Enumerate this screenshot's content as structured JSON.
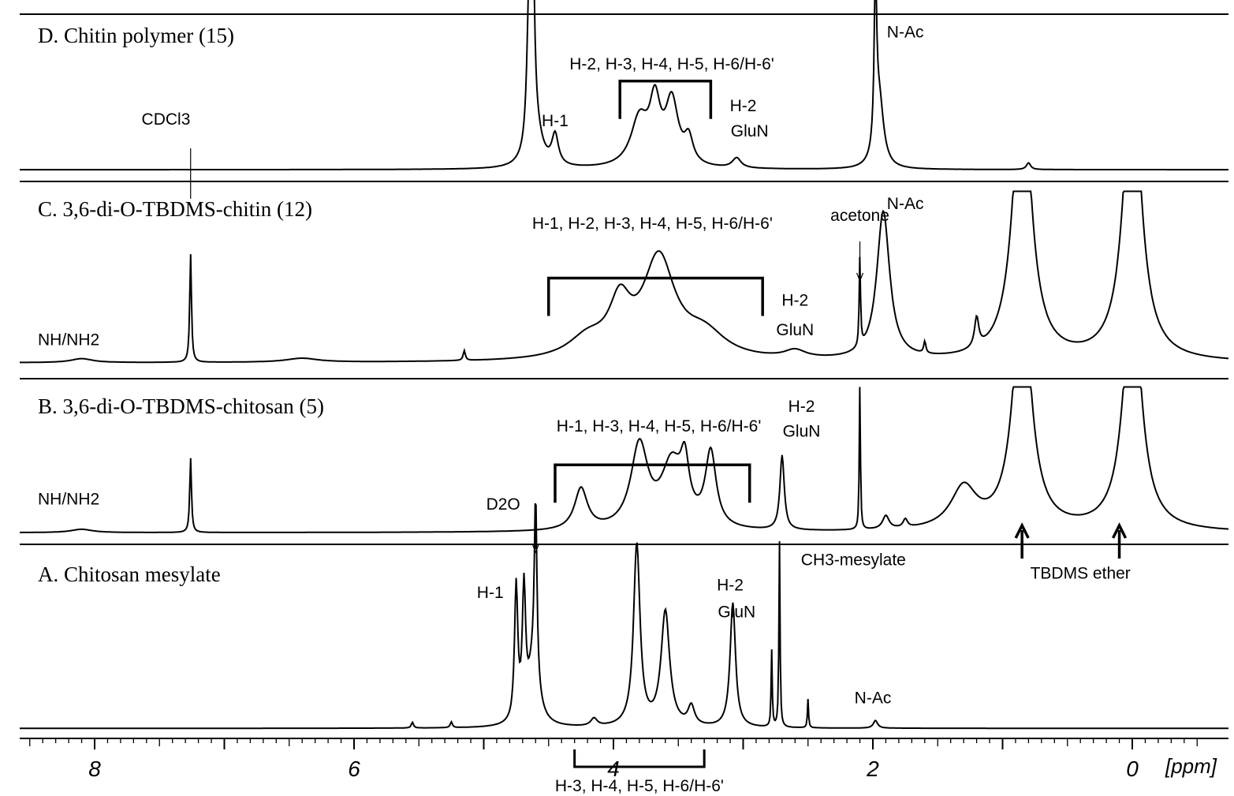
{
  "chart_data": {
    "type": "line",
    "title": "",
    "xlabel": "[ppm]",
    "x_axis_reversed": true,
    "xlim": [
      8.5,
      -0.5
    ],
    "tick_labels": [
      "8",
      "6",
      "4",
      "2",
      "0"
    ],
    "tick_values": [
      8,
      6,
      4,
      2,
      0
    ],
    "grid": false,
    "axis_annotation": {
      "text": "H-3, H-4, H-5, H-6/H-6'",
      "x_from": 4.3,
      "x_to": 3.3
    },
    "panels": [
      {
        "key": "D",
        "title": "D. Chitin polymer (15)",
        "series": {
          "name": "",
          "baseline": 0.93,
          "peaks": [
            {
              "x": 4.62,
              "h": 0.95,
              "w": 0.015
            },
            {
              "x": 4.65,
              "h": 0.9,
              "w": 0.02
            },
            {
              "x": 4.6,
              "h": 0.2,
              "w": 0.06
            },
            {
              "x": 4.45,
              "h": 0.18,
              "w": 0.03
            },
            {
              "x": 3.8,
              "h": 0.28,
              "w": 0.08
            },
            {
              "x": 3.68,
              "h": 0.35,
              "w": 0.05
            },
            {
              "x": 3.55,
              "h": 0.38,
              "w": 0.06
            },
            {
              "x": 3.42,
              "h": 0.15,
              "w": 0.04
            },
            {
              "x": 3.05,
              "h": 0.06,
              "w": 0.04
            },
            {
              "x": 1.98,
              "h": 0.97,
              "w": 0.012
            },
            {
              "x": 1.95,
              "h": 0.4,
              "w": 0.04
            },
            {
              "x": 0.8,
              "h": 0.04,
              "w": 0.02
            }
          ]
        },
        "labels": [
          {
            "text": "N-Ac",
            "x": 1.75,
            "y": 0.14
          },
          {
            "text": "H-2, H-3, H-4, H-5, H-6/H-6'",
            "x": 3.55,
            "y": 0.33
          },
          {
            "text": "H-1",
            "x": 4.45,
            "y": 0.67
          },
          {
            "text": "H-2",
            "x": 3.0,
            "y": 0.58
          },
          {
            "text": "GluN",
            "x": 2.95,
            "y": 0.73
          },
          {
            "text": "CDCl3",
            "x": 7.45,
            "y": 0.66
          }
        ],
        "bracket": {
          "x_from": 3.95,
          "x_to": 3.25
        }
      },
      {
        "key": "C",
        "title": "C.  3,6-di-O-TBDMS-chitin (12)",
        "series": {
          "name": "",
          "baseline": 0.92,
          "clip": 0.05,
          "peaks": [
            {
              "x": 8.1,
              "h": 0.02,
              "w": 0.1
            },
            {
              "x": 7.26,
              "h": 0.55,
              "w": 0.008
            },
            {
              "x": 6.4,
              "h": 0.02,
              "w": 0.15
            },
            {
              "x": 5.15,
              "h": 0.05,
              "w": 0.01
            },
            {
              "x": 4.2,
              "h": 0.1,
              "w": 0.18
            },
            {
              "x": 3.95,
              "h": 0.25,
              "w": 0.1
            },
            {
              "x": 3.65,
              "h": 0.5,
              "w": 0.15
            },
            {
              "x": 3.3,
              "h": 0.12,
              "w": 0.2
            },
            {
              "x": 2.6,
              "h": 0.04,
              "w": 0.1
            },
            {
              "x": 2.1,
              "h": 0.45,
              "w": 0.006
            },
            {
              "x": 1.92,
              "h": 0.75,
              "w": 0.06
            },
            {
              "x": 1.6,
              "h": 0.06,
              "w": 0.01
            },
            {
              "x": 1.2,
              "h": 0.15,
              "w": 0.02
            },
            {
              "x": 0.85,
              "h": 1.5,
              "w": 0.08
            },
            {
              "x": 0.0,
              "h": 1.5,
              "w": 0.08
            }
          ]
        },
        "labels": [
          {
            "text": "acetone",
            "x": 2.1,
            "y": 0.2
          },
          {
            "text": "N-Ac",
            "x": 1.75,
            "y": 0.14
          },
          {
            "text": "H-1, H-2, H-3, H-4, H-5, H-6/H-6'",
            "x": 3.7,
            "y": 0.24
          },
          {
            "text": "H-2",
            "x": 2.6,
            "y": 0.63
          },
          {
            "text": "GluN",
            "x": 2.6,
            "y": 0.78
          },
          {
            "text": "NH/NH2",
            "x": 8.2,
            "y": 0.83
          }
        ],
        "bracket": {
          "x_from": 4.5,
          "x_to": 2.85
        }
      },
      {
        "key": "B",
        "title": "B.  3,6-di-O-TBDMS-chitosan (5)",
        "series": {
          "name": "",
          "baseline": 0.93,
          "clip": 0.05,
          "peaks": [
            {
              "x": 8.1,
              "h": 0.02,
              "w": 0.1
            },
            {
              "x": 7.26,
              "h": 0.45,
              "w": 0.008
            },
            {
              "x": 4.25,
              "h": 0.25,
              "w": 0.06
            },
            {
              "x": 3.8,
              "h": 0.5,
              "w": 0.08
            },
            {
              "x": 3.55,
              "h": 0.38,
              "w": 0.1
            },
            {
              "x": 3.45,
              "h": 0.3,
              "w": 0.04
            },
            {
              "x": 3.25,
              "h": 0.45,
              "w": 0.05
            },
            {
              "x": 2.7,
              "h": 0.45,
              "w": 0.02
            },
            {
              "x": 2.1,
              "h": 0.9,
              "w": 0.005
            },
            {
              "x": 1.9,
              "h": 0.08,
              "w": 0.03
            },
            {
              "x": 1.75,
              "h": 0.05,
              "w": 0.02
            },
            {
              "x": 1.3,
              "h": 0.25,
              "w": 0.12
            },
            {
              "x": 0.85,
              "h": 1.5,
              "w": 0.08
            },
            {
              "x": 0.0,
              "h": 1.5,
              "w": 0.08
            }
          ]
        },
        "labels": [
          {
            "text": "H-2",
            "x": 2.55,
            "y": 0.2
          },
          {
            "text": "GluN",
            "x": 2.55,
            "y": 0.35
          },
          {
            "text": "H-1, H-3, H-4, H-5, H-6/H-6'",
            "x": 3.65,
            "y": 0.32
          },
          {
            "text": "D2O",
            "x": 4.85,
            "y": 0.79
          },
          {
            "text": "NH/NH2",
            "x": 8.2,
            "y": 0.76
          }
        ],
        "bracket": {
          "x_from": 4.45,
          "x_to": 2.95
        }
      },
      {
        "key": "A",
        "title": "A. Chitosan mesylate",
        "series": {
          "name": "",
          "baseline": 0.96,
          "peaks": [
            {
              "x": 5.55,
              "h": 0.03,
              "w": 0.01
            },
            {
              "x": 5.25,
              "h": 0.03,
              "w": 0.01
            },
            {
              "x": 4.75,
              "h": 0.7,
              "w": 0.015
            },
            {
              "x": 4.69,
              "h": 0.65,
              "w": 0.015
            },
            {
              "x": 4.6,
              "h": 0.95,
              "w": 0.012
            },
            {
              "x": 4.62,
              "h": 0.3,
              "w": 0.05
            },
            {
              "x": 4.15,
              "h": 0.04,
              "w": 0.03
            },
            {
              "x": 3.82,
              "h": 0.95,
              "w": 0.03
            },
            {
              "x": 3.6,
              "h": 0.6,
              "w": 0.04
            },
            {
              "x": 3.4,
              "h": 0.1,
              "w": 0.03
            },
            {
              "x": 3.08,
              "h": 0.65,
              "w": 0.025
            },
            {
              "x": 2.72,
              "h": 0.97,
              "w": 0.005
            },
            {
              "x": 2.78,
              "h": 0.4,
              "w": 0.005
            },
            {
              "x": 2.5,
              "h": 0.15,
              "w": 0.005
            },
            {
              "x": 1.98,
              "h": 0.04,
              "w": 0.02
            }
          ]
        },
        "labels": [
          {
            "text": "CH3-mesylate",
            "x": 2.15,
            "y": 0.11
          },
          {
            "text": "H-1",
            "x": 4.95,
            "y": 0.28
          },
          {
            "text": "H-2",
            "x": 3.1,
            "y": 0.24
          },
          {
            "text": "GluN",
            "x": 3.05,
            "y": 0.38
          },
          {
            "text": "N-Ac",
            "x": 2.0,
            "y": 0.83
          },
          {
            "text": "TBDMS ether",
            "x": 0.4,
            "y": 0.18
          }
        ],
        "arrows": [
          0.85,
          0.1
        ]
      }
    ]
  }
}
